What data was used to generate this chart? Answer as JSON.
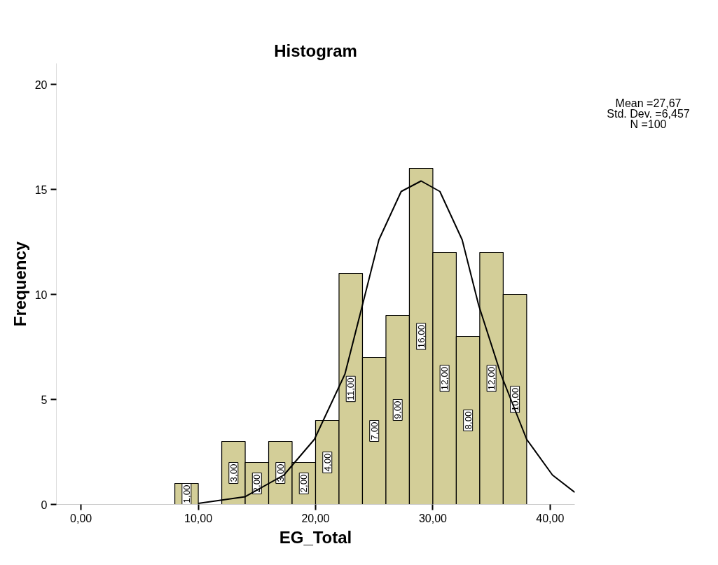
{
  "chart_data": {
    "type": "histogram",
    "title": "Histogram",
    "xlabel": "EG_Total",
    "ylabel": "Frequency",
    "bins": [
      8,
      10,
      12,
      14,
      16,
      18,
      20,
      22,
      24,
      26,
      28,
      30,
      32,
      34,
      36,
      38
    ],
    "values": [
      1,
      0,
      3,
      2,
      3,
      2,
      4,
      11,
      7,
      9,
      16,
      12,
      8,
      12,
      10
    ],
    "value_labels": [
      "1,00",
      null,
      "3,00",
      "2,00",
      "3,00",
      "2,00",
      "4,00",
      "11,00",
      "7,00",
      "9,00",
      "16,00",
      "12,00",
      "8,00",
      "12,00",
      "10,00"
    ],
    "color": "#d3ce98",
    "series": [
      {
        "type": "line",
        "color": "#000000",
        "x": [
          10,
          14.0,
          17.3,
          19.9,
          22.5,
          24.0,
          25.4,
          27.3,
          29.0,
          30.6,
          32.5,
          33.9,
          35.8,
          38.0,
          40.2,
          42.1
        ],
        "values": [
          0.05,
          0.37,
          1.4,
          3.1,
          6.2,
          9.5,
          12.6,
          14.9,
          15.4,
          14.9,
          12.6,
          9.5,
          6.2,
          3.1,
          1.4,
          0.58
        ]
      }
    ],
    "xlim": [
      -2.1,
      42.1
    ],
    "ylim": [
      0,
      21
    ],
    "xticks": [
      {
        "value": 0,
        "label": "0,00"
      },
      {
        "value": 10,
        "label": "10,00"
      },
      {
        "value": 20,
        "label": "20,00"
      },
      {
        "value": 30,
        "label": "30,00"
      },
      {
        "value": 40,
        "label": "40,00"
      }
    ],
    "yticks": [
      0,
      5,
      10,
      15,
      20
    ],
    "grid": false,
    "annotations": [
      "Mean =27,67",
      "Std. Dev. =6,457",
      "N =100"
    ]
  }
}
